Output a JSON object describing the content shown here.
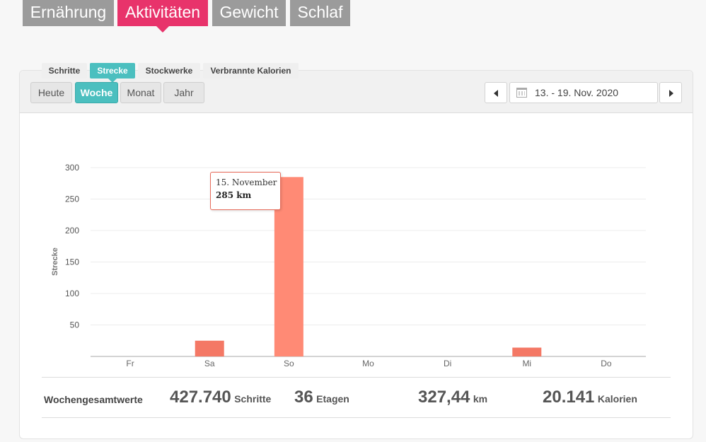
{
  "top_tabs": [
    {
      "label": "Ernährung"
    },
    {
      "label": "Aktivitäten"
    },
    {
      "label": "Gewicht"
    },
    {
      "label": "Schlaf"
    }
  ],
  "period_buttons": [
    {
      "label": "Heute"
    },
    {
      "label": "Woche"
    },
    {
      "label": "Monat"
    },
    {
      "label": "Jahr"
    }
  ],
  "date_range": "13. - 19. Nov. 2020",
  "metric_tabs": [
    {
      "label": "Schritte"
    },
    {
      "label": "Strecke"
    },
    {
      "label": "Stockwerke"
    },
    {
      "label": "Verbrannte Kalorien"
    }
  ],
  "chart_data": {
    "type": "bar",
    "categories": [
      "Fr",
      "Sa",
      "So",
      "Mo",
      "Di",
      "Mi",
      "Do"
    ],
    "values": [
      0,
      25,
      285,
      0,
      0,
      14,
      0
    ],
    "ylabel": "Strecke",
    "yticks": [
      50,
      100,
      150,
      200,
      250,
      300
    ],
    "ylim": [
      0,
      300
    ],
    "grid": true,
    "bar_color": "#ff8a75",
    "highlight_index": 2
  },
  "tooltip": {
    "title": "15. November",
    "value": "285 km"
  },
  "summary": {
    "label": "Wochengesamtwerte",
    "steps": {
      "value": "427.740",
      "unit": "Schritte"
    },
    "floors": {
      "value": "36",
      "unit": "Etagen"
    },
    "distance": {
      "value": "327,44",
      "unit": "km"
    },
    "calories": {
      "value": "20.141",
      "unit": "Kalorien"
    }
  },
  "colors": {
    "accent_pink": "#e8336b",
    "accent_teal": "#4bbfbf",
    "bar": "#ff8a75"
  }
}
